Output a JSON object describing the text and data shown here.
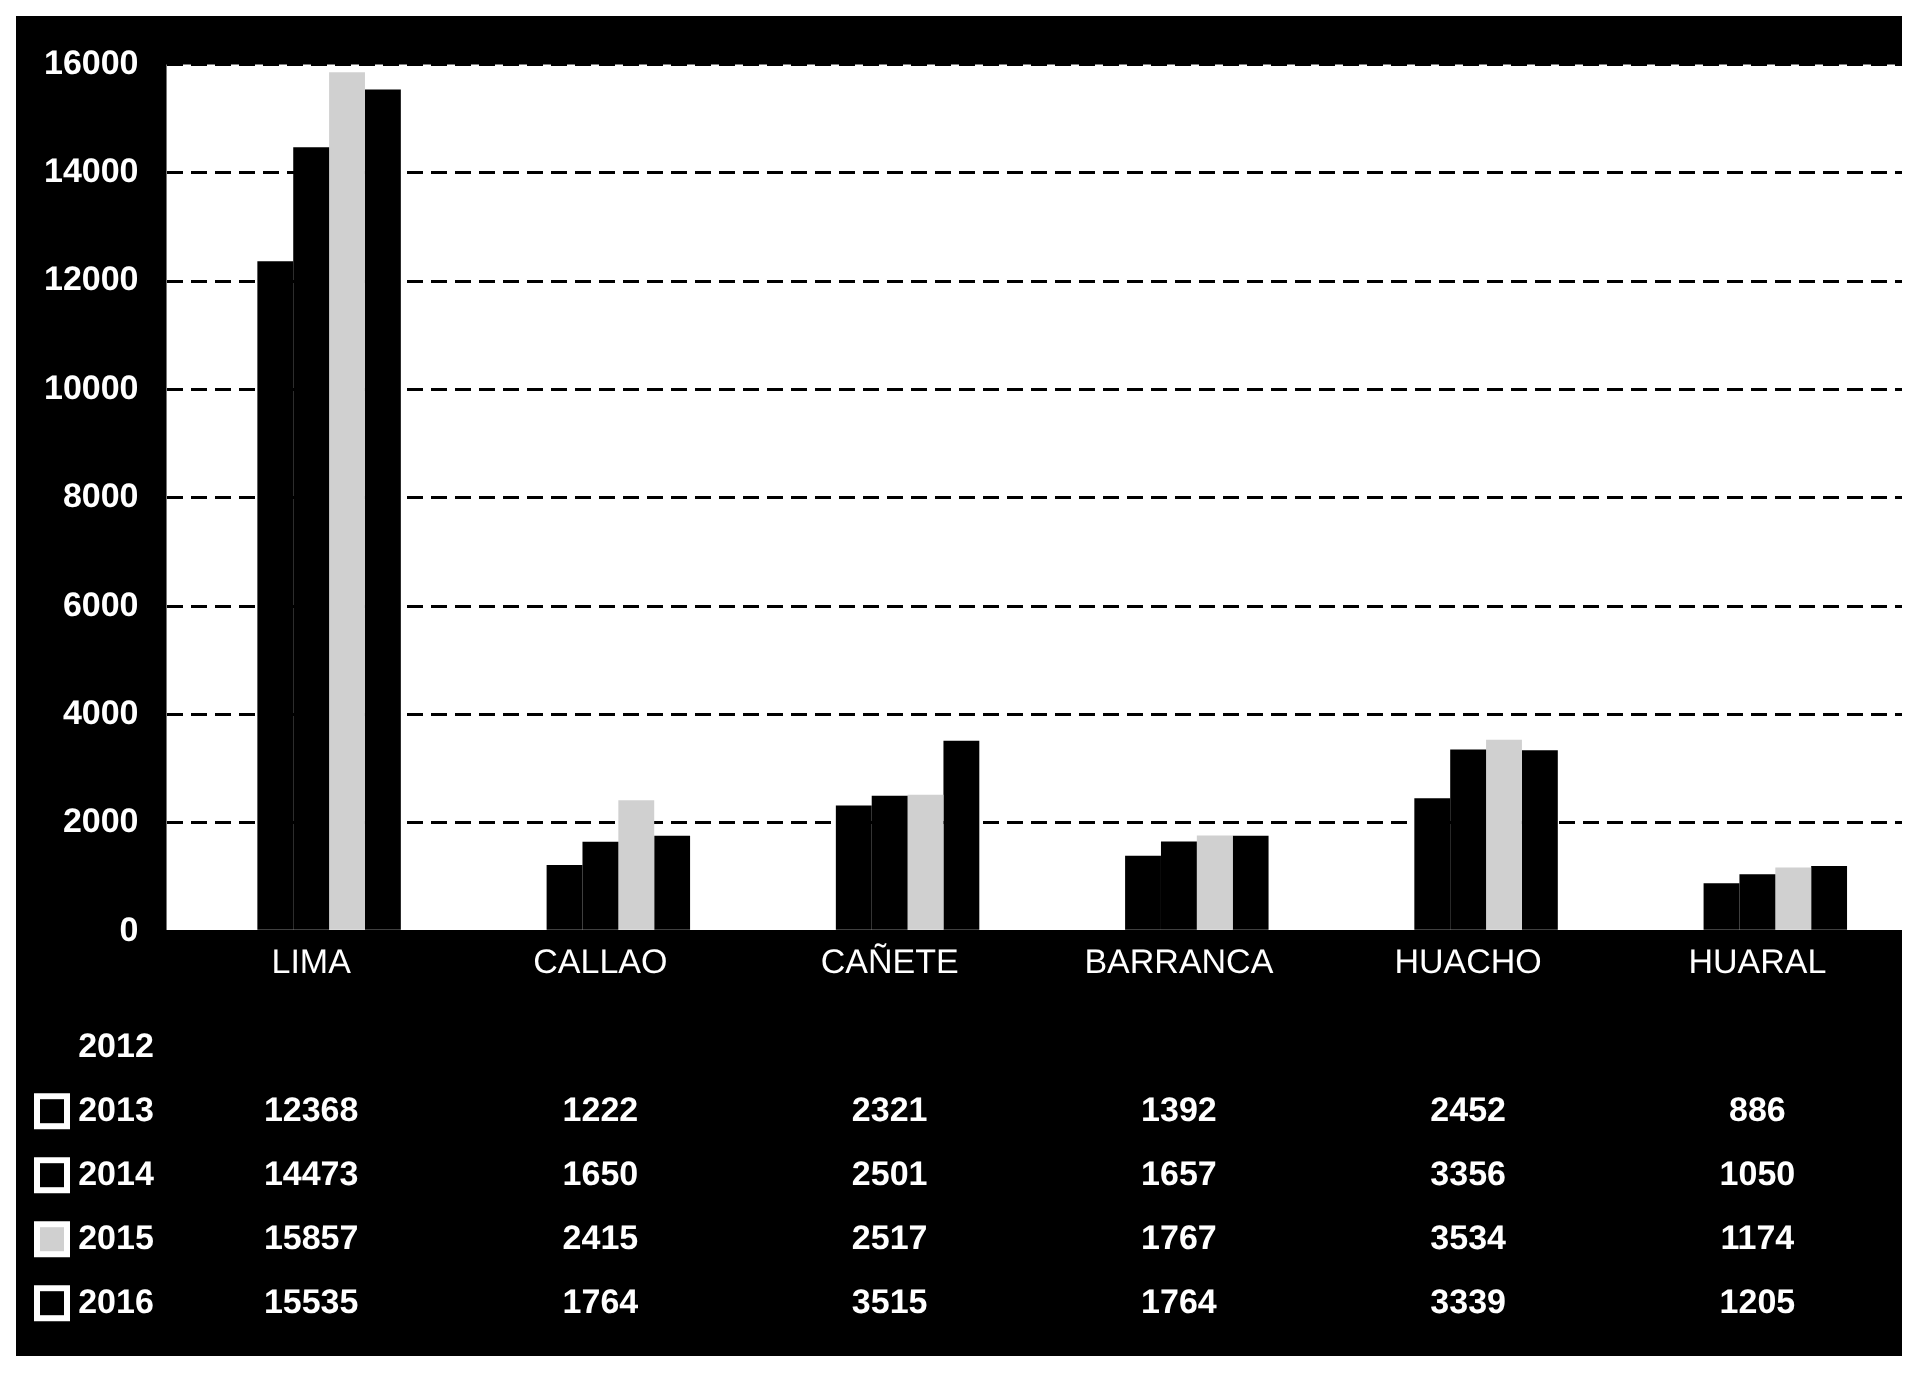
{
  "chart_data": {
    "type": "bar",
    "categories": [
      "LIMA",
      "CALLAO",
      "CAÑETE",
      "BARRANCA",
      "HUACHO",
      "HUARAL"
    ],
    "series": [
      {
        "name": "2012",
        "values": [
          null,
          null,
          null,
          null,
          null,
          null
        ]
      },
      {
        "name": "2013",
        "color": "#000000",
        "values": [
          12368,
          1222,
          2321,
          1392,
          2452,
          886
        ]
      },
      {
        "name": "2014",
        "color": "#000000",
        "values": [
          14473,
          1650,
          2501,
          1657,
          3356,
          1050
        ]
      },
      {
        "name": "2015",
        "color": "#d0d0d0",
        "values": [
          15857,
          2415,
          2517,
          1767,
          3534,
          1174
        ]
      },
      {
        "name": "2016",
        "color": "#000000",
        "values": [
          15535,
          1764,
          3515,
          1764,
          3339,
          1205
        ]
      }
    ],
    "ylim": [
      0,
      16000
    ],
    "yticks": [
      0,
      2000,
      4000,
      6000,
      8000,
      10000,
      12000,
      14000,
      16000
    ],
    "grid": "y",
    "data_labels": true,
    "legend": "bottom left"
  }
}
